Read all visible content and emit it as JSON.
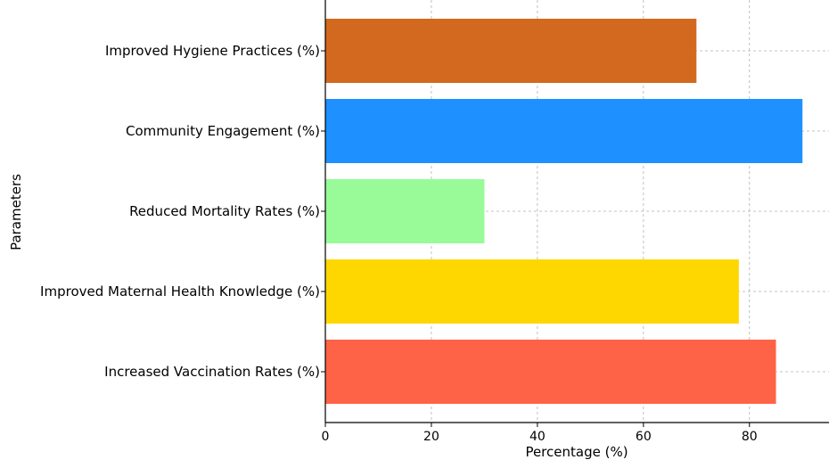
{
  "chart_data": {
    "type": "bar",
    "orientation": "horizontal",
    "categories": [
      "Improved Hygiene Practices (%)",
      "Community Engagement (%)",
      "Reduced Mortality Rates (%)",
      "Improved Maternal Health Knowledge (%)",
      "Increased Vaccination Rates (%)"
    ],
    "values": [
      70,
      90,
      30,
      78,
      85
    ],
    "colors": [
      "#d2691e",
      "#1e90ff",
      "#98fb98",
      "#ffd700",
      "#ff6347"
    ],
    "xlabel": "Percentage (%)",
    "ylabel": "Parameters",
    "xlim": [
      0,
      95
    ],
    "xticks": [
      0,
      20,
      40,
      60,
      80
    ],
    "grid": true
  }
}
